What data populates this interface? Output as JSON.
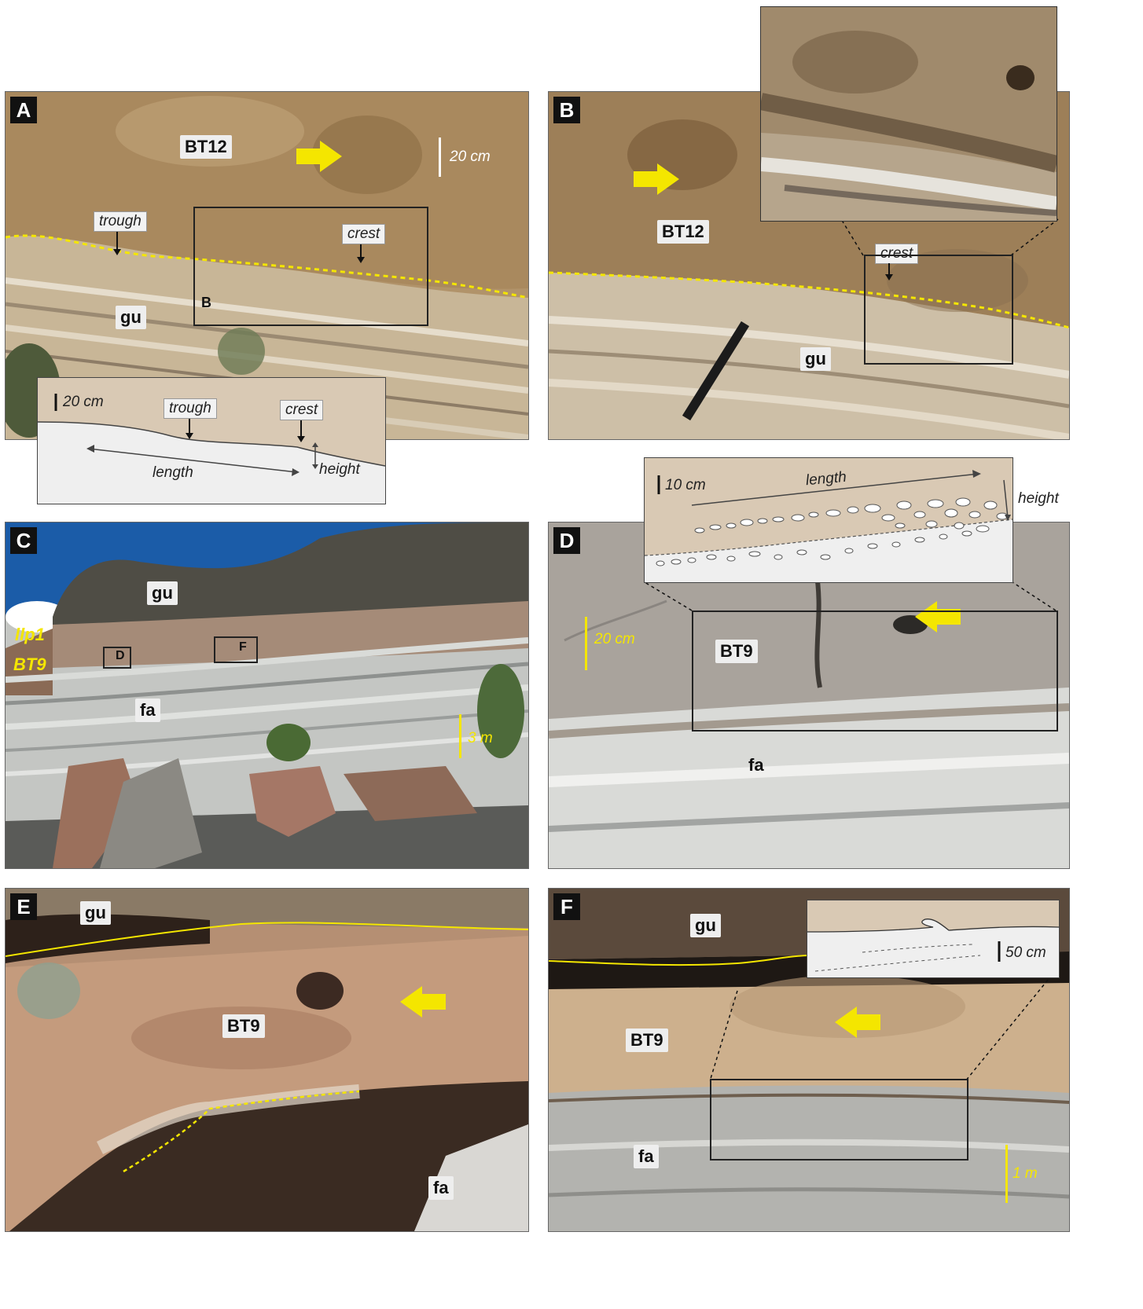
{
  "panels": {
    "a": {
      "letter": "A",
      "labels": {
        "bt12": "BT12",
        "gu": "gu",
        "box_b": "B",
        "trough": "trough",
        "crest": "crest",
        "scale": "20 cm"
      },
      "sketch": {
        "scale": "20 cm",
        "trough": "trough",
        "crest": "crest",
        "length": "length",
        "height": "height"
      }
    },
    "b": {
      "letter": "B",
      "labels": {
        "bt12": "BT12",
        "gu": "gu",
        "crest": "crest"
      }
    },
    "c": {
      "letter": "C",
      "labels": {
        "gu": "gu",
        "fa": "fa",
        "llp1": "llp1",
        "bt9": "BT9",
        "box_d": "D",
        "box_f": "F",
        "scale": "3 m"
      }
    },
    "d": {
      "letter": "D",
      "labels": {
        "bt9": "BT9",
        "fa": "fa",
        "scale": "20 cm"
      },
      "sketch": {
        "scale": "10 cm",
        "length": "length",
        "height": "height"
      }
    },
    "e": {
      "letter": "E",
      "labels": {
        "gu": "gu",
        "bt9": "BT9",
        "fa": "fa"
      }
    },
    "f": {
      "letter": "F",
      "labels": {
        "gu": "gu",
        "bt9": "BT9",
        "fa": "fa",
        "scale": "1 m"
      },
      "sketch": {
        "scale": "50 cm"
      }
    }
  },
  "colors": {
    "accent": "#f4e600",
    "sand": "#b99a6c",
    "ash": "#c6c8c5",
    "sketch_tan": "#d9c9b4",
    "sketch_grey": "#eaeaea"
  }
}
